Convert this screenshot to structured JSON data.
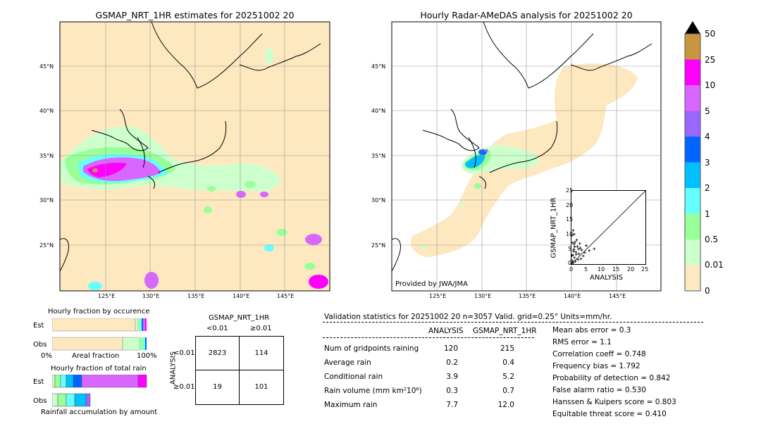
{
  "left_map": {
    "title": "GSMAP_NRT_1HR estimates for 20251002 20",
    "lat_labels": [
      "45°N",
      "40°N",
      "35°N",
      "30°N",
      "25°N"
    ],
    "lon_labels": [
      "125°E",
      "130°E",
      "135°E",
      "140°E",
      "145°E"
    ]
  },
  "right_map": {
    "title": "Hourly Radar-AMeDAS analysis for 20251002 20",
    "lat_labels": [
      "45°N",
      "40°N",
      "35°N",
      "30°N",
      "25°N"
    ],
    "lon_labels": [
      "125°E",
      "130°E",
      "135°E",
      "140°E",
      "145°E"
    ],
    "credit": "Provided by JWA/JMA"
  },
  "colorbar": {
    "ticks": [
      "50",
      "25",
      "10",
      "5",
      "4",
      "3",
      "2",
      "1",
      "0.5",
      "0.01",
      "0"
    ],
    "colors": [
      "#c8963c",
      "#ff00ff",
      "#d966ff",
      "#9966ff",
      "#0066ff",
      "#00c0ff",
      "#66ffff",
      "#99ff99",
      "#ccffcc",
      "#fde8c0"
    ],
    "extend_color": "#000000"
  },
  "scatter": {
    "xlabel": "ANALYSIS",
    "ylabel": "GSMAP_NRT_1HR",
    "xticks": [
      "0",
      "5",
      "10",
      "15",
      "20",
      "25"
    ],
    "yticks": [
      "0",
      "5",
      "10",
      "15",
      "20",
      "25"
    ]
  },
  "occurrence": {
    "title": "Hourly fraction by occurence",
    "est_label": "Est",
    "obs_label": "Obs",
    "axis_left": "0%",
    "axis_mid": "Areal fraction",
    "axis_right": "100%"
  },
  "total_rain": {
    "title": "Hourly fraction of total rain",
    "est_label": "Est",
    "obs_label": "Obs",
    "footer": "Rainfall accumulation by amount"
  },
  "contingency": {
    "col_title": "GSMAP_NRT_1HR",
    "col_lt": "<0.01",
    "col_ge": "≥0.01",
    "row_title": "ANALYSIS",
    "row_lt": "<0.01",
    "row_ge": "≥0.01",
    "cells": [
      [
        "2823",
        "114"
      ],
      [
        "19",
        "101"
      ]
    ]
  },
  "validation": {
    "header": "Validation statistics for 20251002 20  n=3057 Valid. grid=0.25° Units=mm/hr.",
    "col_analysis": "ANALYSIS",
    "col_gsmap": "GSMAP_NRT_1HR",
    "rows": [
      {
        "label": "Num of gridpoints raining",
        "analysis": "120",
        "gsmap": "215"
      },
      {
        "label": "Average rain",
        "analysis": "0.2",
        "gsmap": "0.4"
      },
      {
        "label": "Conditional rain",
        "analysis": "3.9",
        "gsmap": "5.2"
      },
      {
        "label": "Rain volume (mm km²10⁶)",
        "analysis": "0.3",
        "gsmap": "0.7"
      },
      {
        "label": "Maximum rain",
        "analysis": "7.7",
        "gsmap": "12.0"
      }
    ],
    "scores": [
      "Mean abs error =    0.3",
      "RMS error =    1.1",
      "Correlation coeff =  0.748",
      "Frequency bias =  1.792",
      "Probability of detection =  0.842",
      "False alarm ratio =  0.530",
      "Hanssen & Kuipers score =  0.803",
      "Equitable threat score =  0.410"
    ]
  },
  "chart_data": [
    {
      "type": "scatter",
      "title": "",
      "xlabel": "ANALYSIS",
      "ylabel": "GSMAP_NRT_1HR",
      "xlim": [
        0,
        25
      ],
      "ylim": [
        0,
        25
      ],
      "points": [
        [
          0.3,
          1.2
        ],
        [
          0.5,
          3.1
        ],
        [
          0.8,
          5.0
        ],
        [
          1.0,
          2.2
        ],
        [
          1.2,
          7.5
        ],
        [
          0.2,
          9.8
        ],
        [
          1.5,
          4.1
        ],
        [
          2.0,
          6.0
        ],
        [
          0.6,
          11.5
        ],
        [
          2.5,
          3.5
        ],
        [
          3.0,
          5.5
        ],
        [
          0.4,
          0.6
        ],
        [
          1.8,
          8.2
        ],
        [
          2.2,
          1.5
        ],
        [
          0.9,
          6.8
        ],
        [
          3.5,
          4.8
        ],
        [
          4.0,
          2.8
        ],
        [
          0.7,
          4.4
        ],
        [
          1.3,
          0.9
        ],
        [
          2.8,
          7.0
        ],
        [
          0.1,
          2.9
        ],
        [
          5.0,
          6.3
        ],
        [
          1.6,
          3.3
        ],
        [
          0.9,
          10.2
        ],
        [
          2.4,
          5.1
        ],
        [
          3.2,
          1.8
        ],
        [
          0.3,
          7.3
        ],
        [
          4.5,
          3.9
        ],
        [
          1.1,
          5.9
        ],
        [
          6.0,
          4.6
        ],
        [
          0.5,
          0.3
        ],
        [
          7.7,
          5.2
        ]
      ]
    },
    {
      "type": "table",
      "title": "GSMAP_NRT_1HR",
      "rows": [
        "<0.01",
        "≥0.01"
      ],
      "columns": [
        "<0.01",
        "≥0.01"
      ],
      "values": [
        [
          2823,
          114
        ],
        [
          19,
          101
        ]
      ]
    }
  ]
}
